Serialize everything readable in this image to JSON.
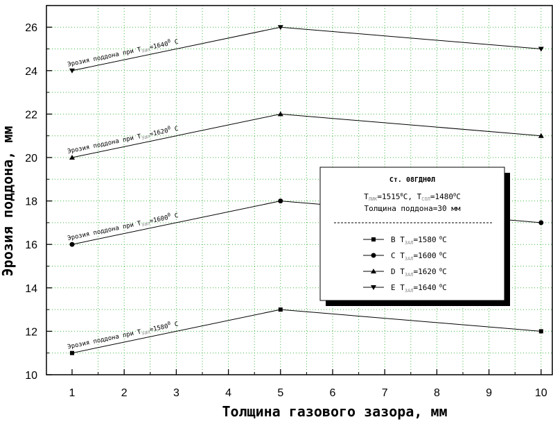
{
  "chart_data": {
    "type": "line",
    "title": "",
    "xlabel": "Толщина газового зазора, мм",
    "ylabel": "Эрозия поддона, мм",
    "xlim": [
      0.5,
      10.3
    ],
    "ylim": [
      10,
      27
    ],
    "x_ticks": [
      "1",
      "2",
      "3",
      "4",
      "5",
      "6",
      "7",
      "8",
      "9",
      "10"
    ],
    "y_ticks": [
      "10",
      "12",
      "14",
      "16",
      "18",
      "20",
      "22",
      "24",
      "26"
    ],
    "grid": true,
    "legend_position": "right",
    "x": [
      1,
      5,
      10
    ],
    "series": [
      {
        "key": "B",
        "marker": "square",
        "values": [
          11,
          13,
          12
        ],
        "label_prefix": "Эрозия поддона при T",
        "label_sub": "зал",
        "label_value": "=1580",
        "label_unit": " C",
        "legend_letter": "B",
        "legend_value": "=1580"
      },
      {
        "key": "C",
        "marker": "circle",
        "values": [
          16,
          18,
          17
        ],
        "label_prefix": "Эрозия поддона при T",
        "label_sub": "зал",
        "label_value": "=1600",
        "label_unit": " C",
        "legend_letter": "C",
        "legend_value": "=1600"
      },
      {
        "key": "D",
        "marker": "triangle-up",
        "values": [
          20,
          22,
          21
        ],
        "label_prefix": "Эрозия поддона при T",
        "label_sub": "зал",
        "label_value": "=1620",
        "label_unit": " C",
        "legend_letter": "D",
        "legend_value": "=1620"
      },
      {
        "key": "E",
        "marker": "triangle-down",
        "values": [
          24,
          26,
          25
        ],
        "label_prefix": "Эрозия поддона при T",
        "label_sub": "зал",
        "label_value": "=1640",
        "label_unit": " C",
        "legend_letter": "E",
        "legend_value": "=1640"
      }
    ],
    "legend": {
      "title": "Ст. 08ГДНФЛ",
      "line1_part1": "T",
      "line1_sub1": "ЛИК",
      "line1_part2": "=1515",
      "line1_sup": "0",
      "line1_part3": "C, T",
      "line1_sub2": "СОЛ",
      "line1_part4": "=1480",
      "line1_sup2": "0",
      "line1_part5": "C",
      "line2": "Толщина поддона=30 мм",
      "item_prefix": "T",
      "item_sub": "ЗАЛ",
      "item_sup": "0",
      "item_unit": "C"
    }
  }
}
